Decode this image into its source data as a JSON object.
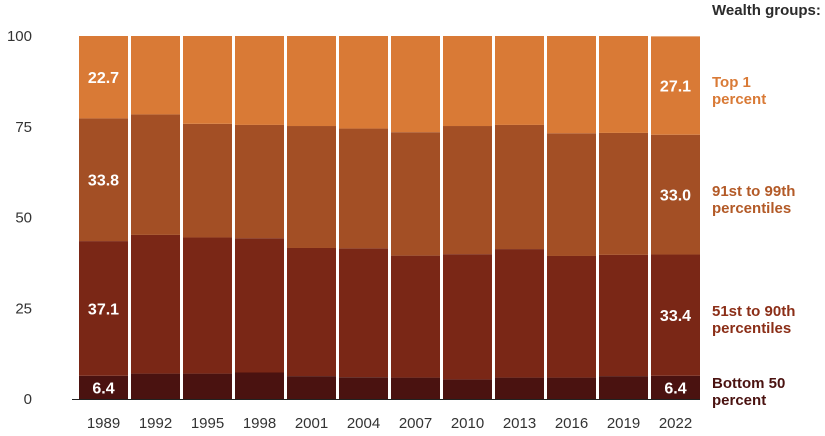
{
  "legend": {
    "title": "Wealth groups:",
    "items": [
      {
        "key": "top1",
        "label": "Top 1\npercent",
        "color": "#d97a36"
      },
      {
        "key": "p91_99",
        "label": "91st to 99th\npercentiles",
        "color": "#b35a27"
      },
      {
        "key": "p51_90",
        "label": "51st to 90th\npercentiles",
        "color": "#8b2e17"
      },
      {
        "key": "bottom50",
        "label": "Bottom 50\npercent",
        "color": "#4a1210"
      }
    ]
  },
  "chart_data": {
    "type": "bar",
    "stacked": true,
    "categories": [
      "1989",
      "1992",
      "1995",
      "1998",
      "2001",
      "2004",
      "2007",
      "2010",
      "2013",
      "2016",
      "2019",
      "2022"
    ],
    "ylim": [
      0,
      100
    ],
    "yticks": [
      0,
      25,
      50,
      75,
      100
    ],
    "series": [
      {
        "name": "Bottom 50 percent",
        "color": "#4a1210",
        "values": [
          6.4,
          7.0,
          7.0,
          7.3,
          6.3,
          6.0,
          5.9,
          5.4,
          5.9,
          5.9,
          6.3,
          6.4
        ]
      },
      {
        "name": "51st to 90th percentiles",
        "color": "#7a2716",
        "values": [
          37.1,
          38.2,
          37.5,
          37.0,
          35.3,
          35.5,
          33.6,
          34.5,
          35.4,
          33.5,
          33.4,
          33.4
        ]
      },
      {
        "name": "91st to 99th percentiles",
        "color": "#a34f25",
        "values": [
          33.8,
          33.2,
          31.3,
          31.2,
          33.6,
          33.0,
          34.0,
          35.3,
          34.2,
          33.8,
          33.6,
          33.0
        ]
      },
      {
        "name": "Top 1 percent",
        "color": "#d97a36",
        "values": [
          22.7,
          21.6,
          24.2,
          24.5,
          24.8,
          25.5,
          26.5,
          24.8,
          24.5,
          26.8,
          26.7,
          27.1
        ]
      }
    ],
    "data_labels": [
      {
        "category": "1989",
        "series": 0,
        "text": "6.4"
      },
      {
        "category": "1989",
        "series": 1,
        "text": "37.1"
      },
      {
        "category": "1989",
        "series": 2,
        "text": "33.8"
      },
      {
        "category": "1989",
        "series": 3,
        "text": "22.7"
      },
      {
        "category": "2022",
        "series": 0,
        "text": "6.4"
      },
      {
        "category": "2022",
        "series": 1,
        "text": "33.4"
      },
      {
        "category": "2022",
        "series": 2,
        "text": "33.0"
      },
      {
        "category": "2022",
        "series": 3,
        "text": "27.1"
      }
    ]
  }
}
